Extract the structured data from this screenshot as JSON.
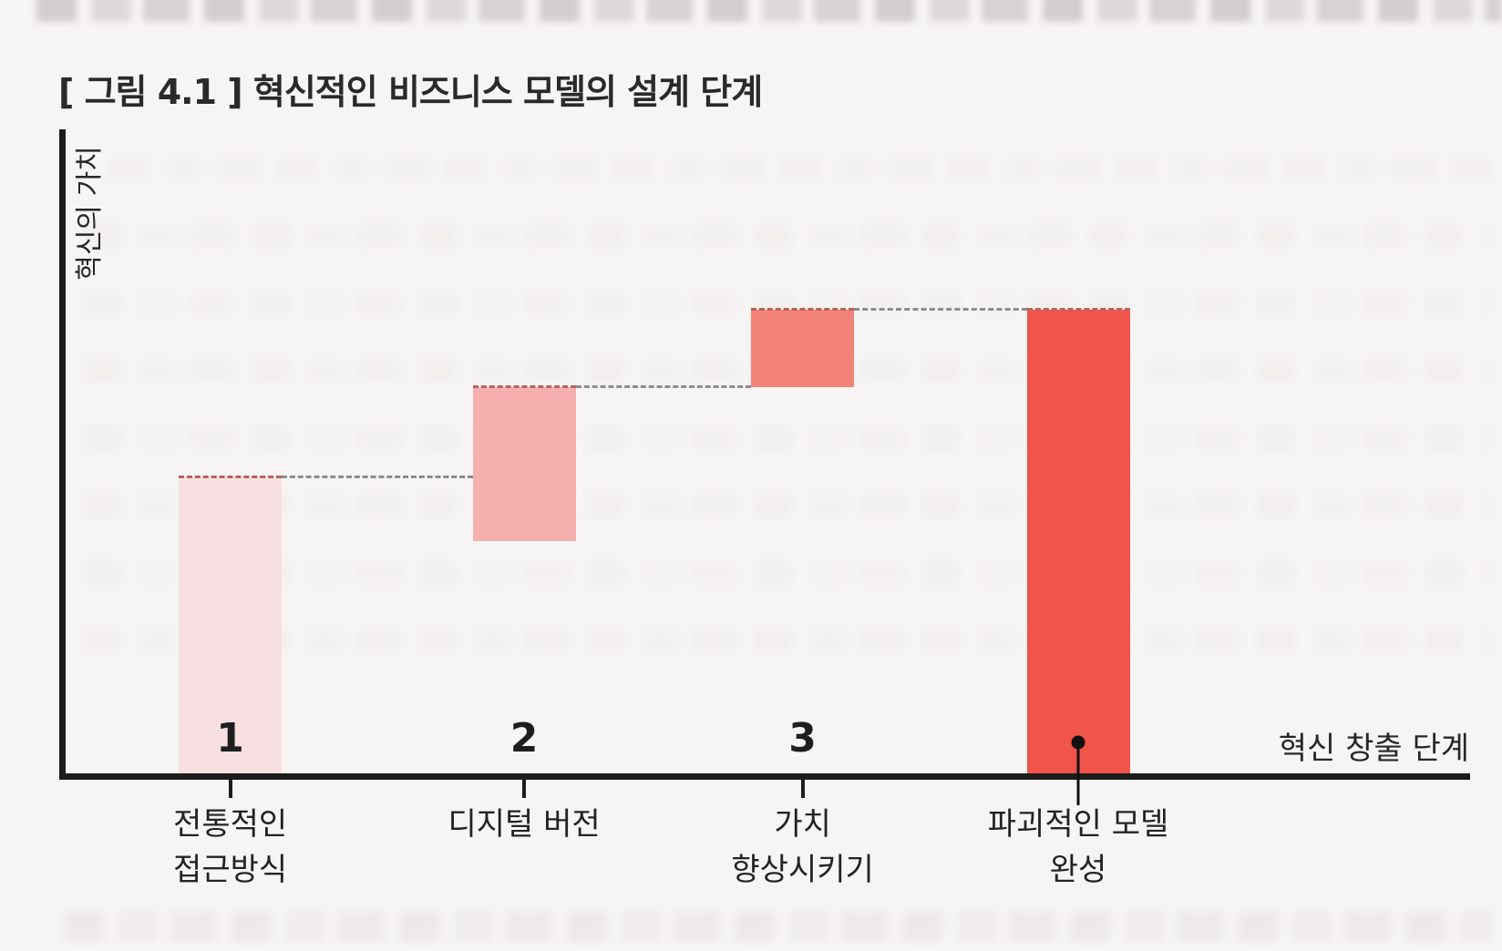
{
  "figure_title": "[ 그림 4.1 ] 혁신적인 비즈니스 모델의 설계 단계",
  "chart_data": {
    "type": "bar",
    "subtype": "waterfall-steps",
    "title": "[ 그림 4.1 ] 혁신적인 비즈니스 모델의 설계 단계",
    "xlabel": "혁신 창출 단계",
    "ylabel": "혁신의 가치",
    "value_axis_range": [
      0,
      100
    ],
    "grid": false,
    "legend": "none",
    "categories": [
      "전통적인 접근방식",
      "디지털 버전",
      "가치 향상시키기",
      "파괴적인 모델 완성"
    ],
    "bars": [
      {
        "number": "1",
        "label_lines": [
          "전통적인",
          "접근방식"
        ],
        "value_span": [
          0,
          46
        ],
        "color": "#f8dfe1",
        "x_center_pct": 11.9,
        "callout_dot": false
      },
      {
        "number": "2",
        "label_lines": [
          "디지털 버전"
        ],
        "value_span": [
          36,
          60
        ],
        "color": "#f5b0ad",
        "x_center_pct": 32.8,
        "callout_dot": false
      },
      {
        "number": "3",
        "label_lines": [
          "가치",
          "향상시키기"
        ],
        "value_span": [
          60,
          72
        ],
        "color": "#f3837a",
        "x_center_pct": 52.6,
        "callout_dot": false
      },
      {
        "number": null,
        "label_lines": [
          "파괴적인 모델",
          "완성"
        ],
        "value_span": [
          0,
          72
        ],
        "color": "#f0544b",
        "x_center_pct": 72.2,
        "callout_dot": true
      }
    ],
    "connector_style": "dashed",
    "axis_color": "#1c1c1c",
    "dash_color": "#8d8d8d",
    "dash_on_bar_color": "#b8625d",
    "text_color": "#272727"
  }
}
